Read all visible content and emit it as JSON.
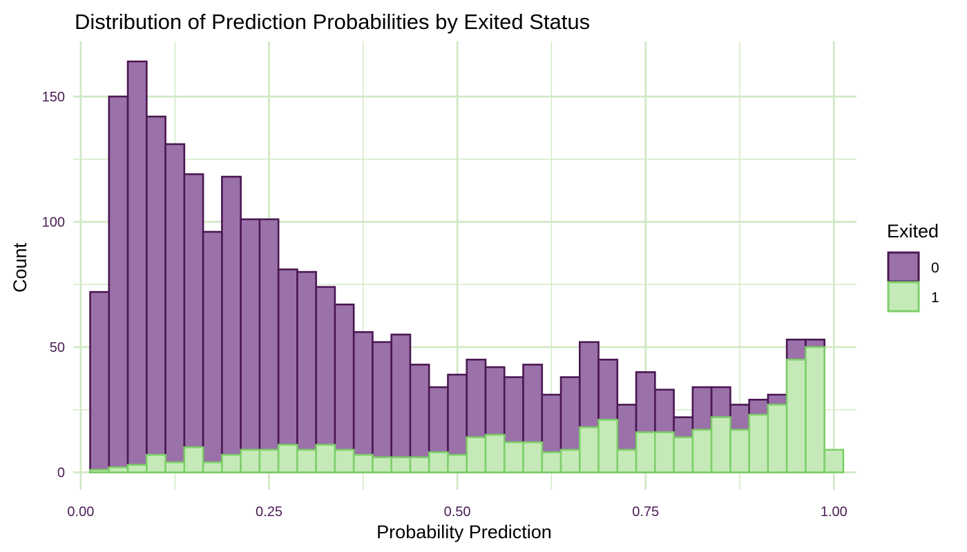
{
  "colors": {
    "grid": "#cfe8c2",
    "tick_label": "#4a1c55",
    "series_fill": [
      "#9a71a8",
      "#c5eab8"
    ],
    "series_stroke": [
      "#4a1752",
      "#7ccf68"
    ]
  },
  "chart_data": {
    "type": "bar",
    "subtype": "histogram",
    "position": "identity",
    "title": "Distribution of Prediction Probabilities by Exited Status",
    "xlabel": "Probability Prediction",
    "ylabel": "Count",
    "xlim": [
      -0.01,
      1.03
    ],
    "ylim": [
      -7,
      172
    ],
    "xticks": [
      0,
      0.25,
      0.5,
      0.75,
      1
    ],
    "xtick_labels": [
      "0.00",
      "0.25",
      "0.50",
      "0.75",
      "1.00"
    ],
    "yticks": [
      0,
      50,
      100,
      150
    ],
    "ytick_labels": [
      "0",
      "50",
      "100",
      "150"
    ],
    "minor_xticks": [
      0.125,
      0.375,
      0.625,
      0.875
    ],
    "minor_yticks": [
      25,
      75,
      125
    ],
    "grid": true,
    "bin_width": 0.025,
    "bin_centers": [
      0.025,
      0.05,
      0.075,
      0.1,
      0.125,
      0.15,
      0.175,
      0.2,
      0.225,
      0.25,
      0.275,
      0.3,
      0.325,
      0.35,
      0.375,
      0.4,
      0.425,
      0.45,
      0.475,
      0.5,
      0.525,
      0.55,
      0.575,
      0.6,
      0.625,
      0.65,
      0.675,
      0.7,
      0.725,
      0.75,
      0.775,
      0.8,
      0.825,
      0.85,
      0.875,
      0.9,
      0.925,
      0.95,
      0.975,
      1.0
    ],
    "legend": {
      "title": "Exited",
      "position": "right"
    },
    "series": [
      {
        "name": "0",
        "values": [
          72,
          150,
          164,
          142,
          131,
          119,
          96,
          118,
          101,
          101,
          81,
          80,
          74,
          67,
          56,
          52,
          55,
          43,
          34,
          39,
          45,
          42,
          38,
          43,
          31,
          38,
          52,
          45,
          27,
          40,
          33,
          22,
          34,
          34,
          27,
          29,
          31,
          53,
          53,
          0
        ]
      },
      {
        "name": "1",
        "values": [
          1,
          2,
          3,
          7,
          4,
          10,
          4,
          7,
          9,
          9,
          11,
          9,
          11,
          9,
          7,
          6,
          6,
          6,
          8,
          7,
          14,
          15,
          12,
          12,
          8,
          9,
          18,
          21,
          9,
          16,
          16,
          14,
          17,
          22,
          17,
          23,
          27,
          45,
          50,
          9
        ]
      }
    ]
  }
}
